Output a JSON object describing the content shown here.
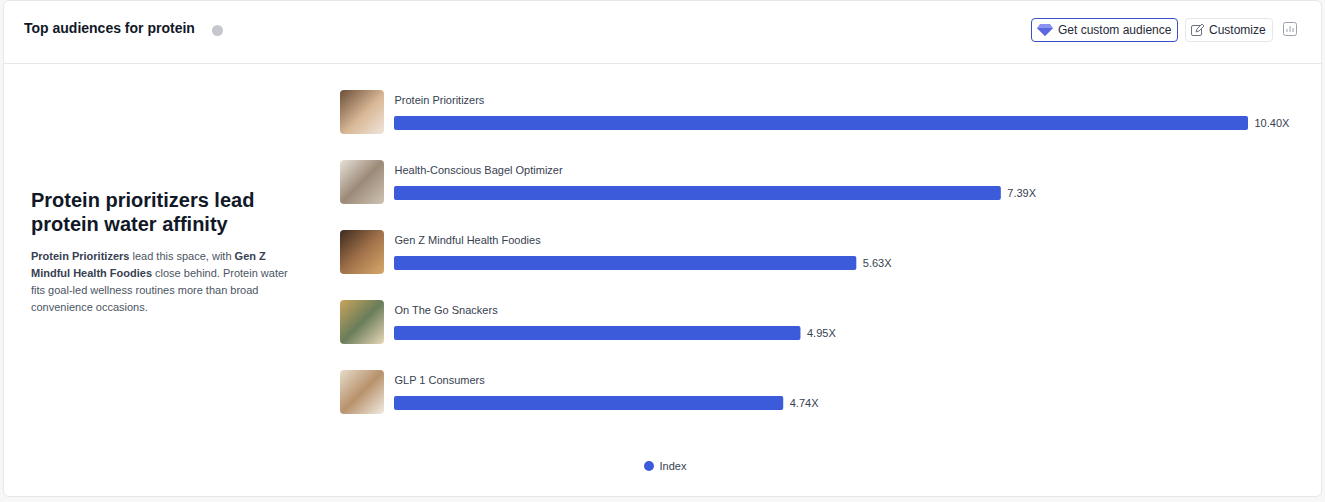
{
  "chart_data": {
    "type": "bar",
    "orientation": "horizontal",
    "title": "Top audiences for protein",
    "categories": [
      "Protein Prioritizers",
      "Health-Conscious Bagel Optimizer",
      "Gen Z Mindful Health Foodies",
      "On The Go Snackers",
      "GLP 1 Consumers"
    ],
    "series": [
      {
        "name": "Index",
        "color": "#3b5bdb",
        "values": [
          10.4,
          7.39,
          5.63,
          4.95,
          4.74
        ],
        "value_labels": [
          "10.40X",
          "7.39X",
          "5.63X",
          "4.95X",
          "4.74X"
        ]
      }
    ],
    "xlim": [
      0,
      10.4
    ],
    "xticks": [],
    "data_labels": true,
    "tick_labels": false,
    "grid": false,
    "legend": "bottom"
  },
  "header": {
    "buttons": [
      "Get custom audience",
      "Customize"
    ]
  },
  "insight": {
    "headline": "Protein prioritizers lead protein water affinity",
    "body": [
      {
        "text": "Protein Prioritizers",
        "bold": true
      },
      {
        "text": " lead this space, with "
      },
      {
        "text": "Gen Z Mindful Health Foodies",
        "bold": true
      },
      {
        "text": " close behind. Protein water fits goal-led wellness routines more than broad convenience occasions."
      }
    ]
  }
}
